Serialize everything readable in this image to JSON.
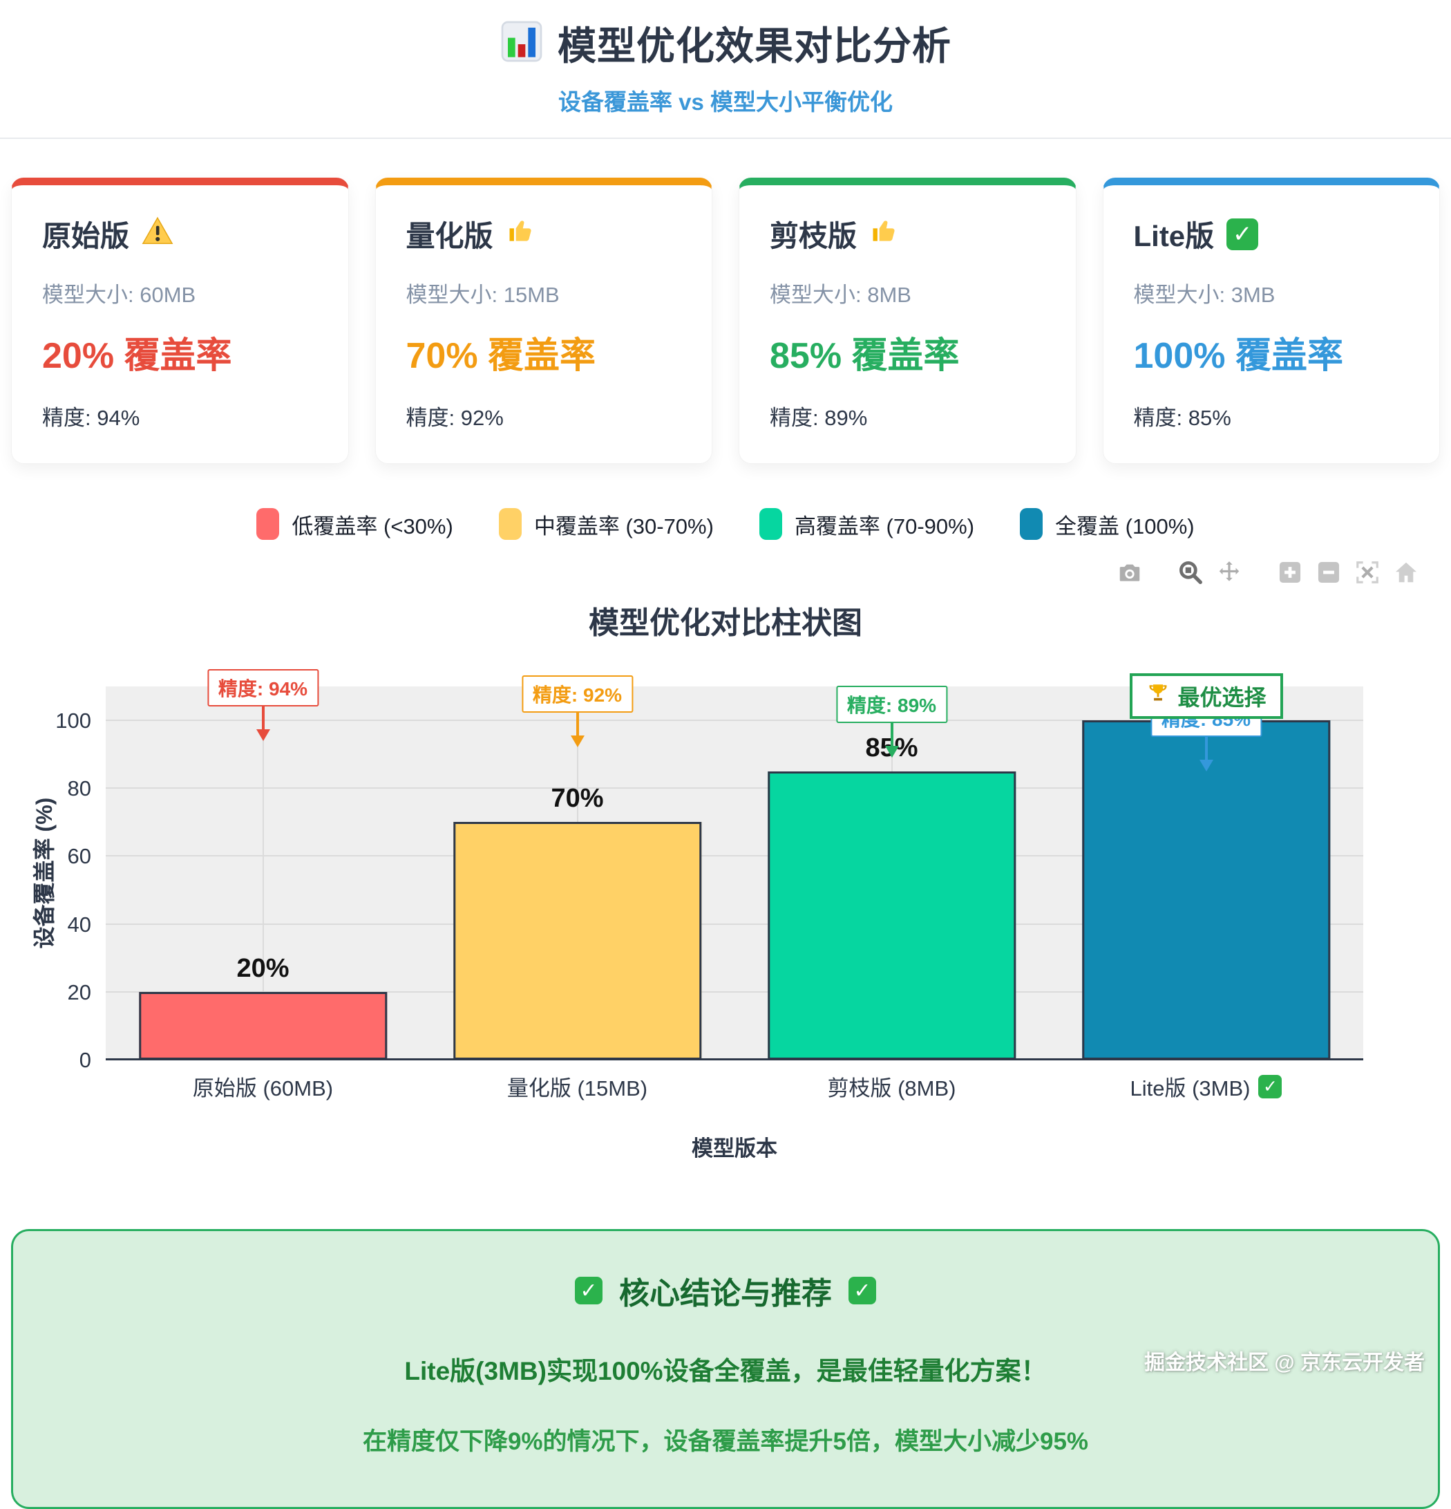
{
  "header": {
    "title": "模型优化效果对比分析",
    "title_icon": "bar-chart-icon",
    "subtitle": "设备覆盖率 vs 模型大小平衡优化"
  },
  "cards": [
    {
      "title": "原始版",
      "icon": "warning-icon",
      "size": "模型大小: 60MB",
      "coverage": "20% 覆盖率",
      "accuracy": "精度: 94%",
      "accent": "#E74C3C"
    },
    {
      "title": "量化版",
      "icon": "thumbs-up-icon",
      "size": "模型大小: 15MB",
      "coverage": "70% 覆盖率",
      "accuracy": "精度: 92%",
      "accent": "#F39C12"
    },
    {
      "title": "剪枝版",
      "icon": "thumbs-up-icon",
      "size": "模型大小: 8MB",
      "coverage": "85% 覆盖率",
      "accuracy": "精度: 89%",
      "accent": "#27AE60"
    },
    {
      "title": "Lite版",
      "icon": "check-icon",
      "size": "模型大小: 3MB",
      "coverage": "100% 覆盖率",
      "accuracy": "精度: 85%",
      "accent": "#3498DB"
    }
  ],
  "legend": {
    "items": [
      {
        "label": "低覆盖率 (<30%)",
        "color": "#FF6B6B"
      },
      {
        "label": "中覆盖率 (30-70%)",
        "color": "#FFD166"
      },
      {
        "label": "高覆盖率 (70-90%)",
        "color": "#06D6A0"
      },
      {
        "label": "全覆盖 (100%)",
        "color": "#118AB2"
      }
    ]
  },
  "toolbar": {
    "icons": [
      "camera-icon",
      "zoom-icon",
      "pan-icon",
      "zoom-in-icon",
      "zoom-out-icon",
      "autoscale-icon",
      "reset-axes-icon"
    ],
    "active_icon": "zoom-icon"
  },
  "chart_data": {
    "type": "bar",
    "title": "模型优化对比柱状图",
    "categories": [
      "原始版 (60MB)",
      "量化版 (15MB)",
      "剪枝版 (8MB)",
      "Lite版 (3MB)"
    ],
    "values": [
      20,
      70,
      85,
      100
    ],
    "unit": "%",
    "colors": [
      "#FF6B6B",
      "#FFD166",
      "#06D6A0",
      "#118AB2"
    ],
    "bar_border_color": "#2D3748",
    "accuracy_annotations": [
      {
        "text": "精度: 94%",
        "value": 94,
        "color": "#E74C3C"
      },
      {
        "text": "精度: 92%",
        "value": 92,
        "color": "#F39C12"
      },
      {
        "text": "精度: 89%",
        "value": 89,
        "color": "#27AE60"
      },
      {
        "text": "精度: 85%",
        "value": 85,
        "color": "#3498DB"
      }
    ],
    "best_choice": {
      "text": "最优选择",
      "icon": "trophy-icon",
      "category_index": 3,
      "color": "#27AE60"
    },
    "xlabel": "模型版本",
    "ylabel": "设备覆盖率 (%)",
    "ylim": [
      0,
      110
    ],
    "yticks": [
      0,
      20,
      40,
      60,
      80,
      100
    ],
    "grid": true,
    "plot_background": "#EFEFEF",
    "last_category_badge": "check-icon"
  },
  "conclusion": {
    "title": "核心结论与推荐",
    "line1": "Lite版(3MB)实现100%设备全覆盖，是最佳轻量化方案！",
    "line2": "在精度仅下降9%的情况下，设备覆盖率提升5倍，模型大小减少95%"
  },
  "watermark": "掘金技术社区 @ 京东云开发者"
}
